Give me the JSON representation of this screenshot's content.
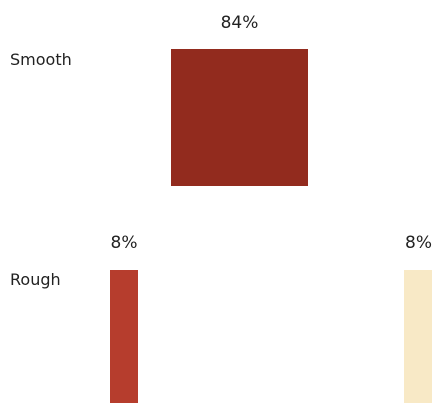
{
  "chart_data": {
    "type": "heatmap",
    "title": "",
    "xlabel": "",
    "ylabel": "",
    "rows": [
      "Smooth",
      "Rough"
    ],
    "cells": [
      {
        "row": "Smooth",
        "value": 84,
        "label": "84%",
        "color": "#922B1E"
      },
      {
        "row": "Rough",
        "value": 8,
        "label": "8%",
        "color": "#B63D2D"
      },
      {
        "row": "Rough",
        "value": 8,
        "label": "8%",
        "color": "#F8E9C6"
      }
    ]
  }
}
